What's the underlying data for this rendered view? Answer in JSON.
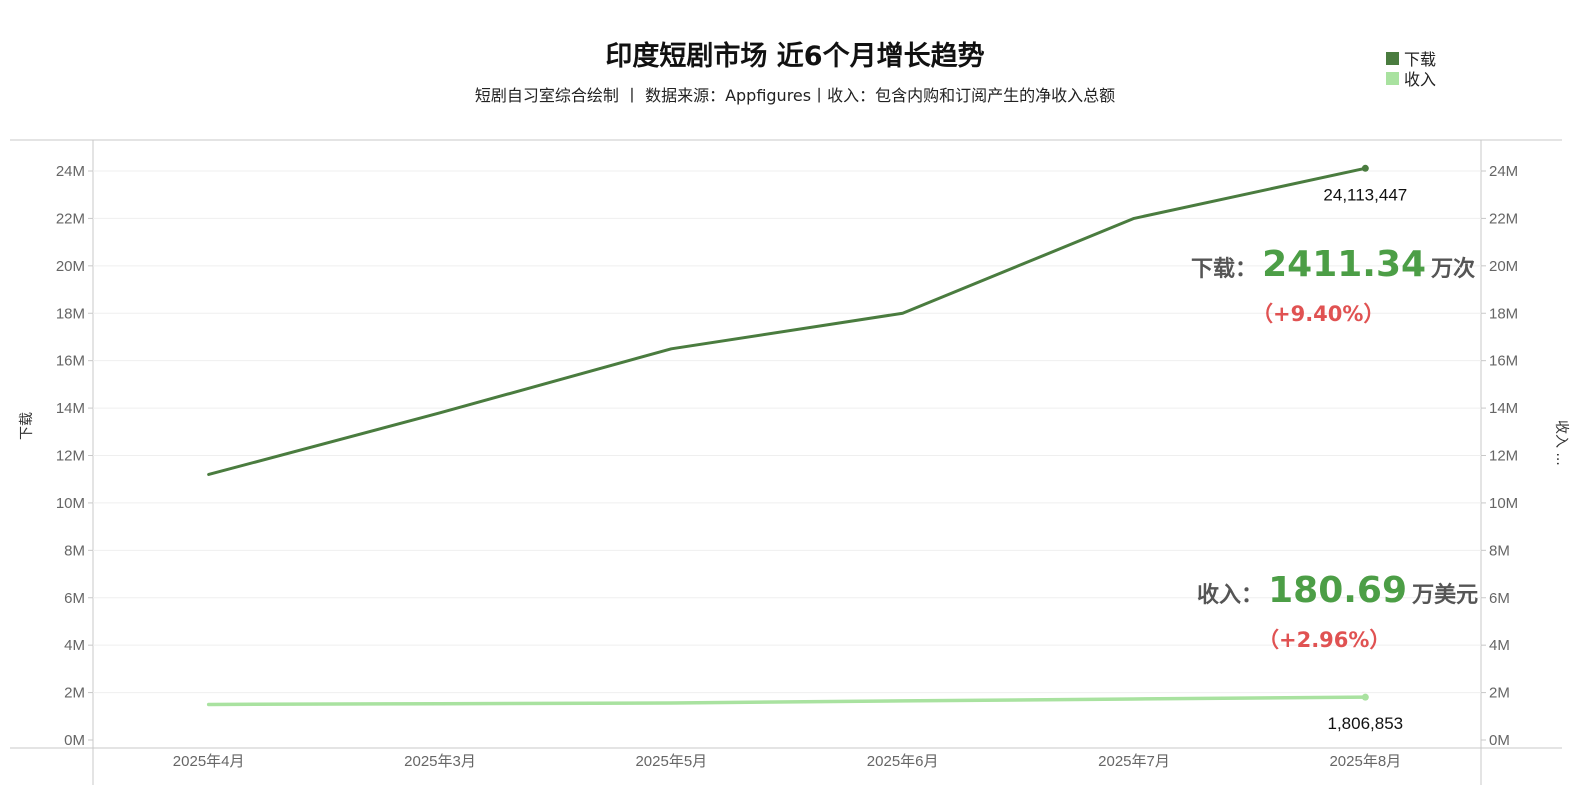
{
  "header": {
    "title": "印度短剧市场 近6个月增长趋势",
    "subtitle": "短剧自习室综合绘制 丨 数据来源：Appfigures丨收入：包含内购和订阅产生的净收入总额"
  },
  "legend": [
    {
      "label": "下载",
      "color": "#4a7c3f"
    },
    {
      "label": "收入",
      "color": "#a9e2a0"
    }
  ],
  "axes": {
    "left_label": "下载",
    "right_label": "收入 ..."
  },
  "kpis": {
    "downloads": {
      "label": "下载：",
      "value": "2411.34",
      "unit": "万次",
      "change": "（+9.40%）"
    },
    "revenue": {
      "label": "收入：",
      "value": "180.69",
      "unit": "万美元",
      "change": "（+2.96%）"
    }
  },
  "chart_data": {
    "type": "line",
    "title": "印度短剧市场 近6个月增长趋势",
    "categories": [
      "2025年4月",
      "2025年3月",
      "2025年5月",
      "2025年6月",
      "2025年7月",
      "2025年8月"
    ],
    "series": [
      {
        "name": "下载",
        "axis": "left",
        "color": "#4a7c3f",
        "values": [
          11200000,
          13800000,
          16500000,
          18000000,
          22000000,
          24113447
        ]
      },
      {
        "name": "收入",
        "axis": "right",
        "color": "#a9e2a0",
        "values": [
          1500000,
          1530000,
          1560000,
          1650000,
          1730000,
          1806853
        ]
      }
    ],
    "ylim": [
      0,
      25000000
    ],
    "y_ticks": [
      0,
      2000000,
      4000000,
      6000000,
      8000000,
      10000000,
      12000000,
      14000000,
      16000000,
      18000000,
      20000000,
      22000000,
      24000000
    ],
    "y_tick_labels": [
      "0M",
      "2M",
      "4M",
      "6M",
      "8M",
      "10M",
      "12M",
      "14M",
      "16M",
      "18M",
      "20M",
      "22M",
      "24M"
    ],
    "data_labels": [
      {
        "series": "下载",
        "index": 5,
        "text": "24,113,447"
      },
      {
        "series": "收入",
        "index": 5,
        "text": "1,806,853"
      }
    ],
    "grid": true,
    "legend_position": "top-right"
  }
}
